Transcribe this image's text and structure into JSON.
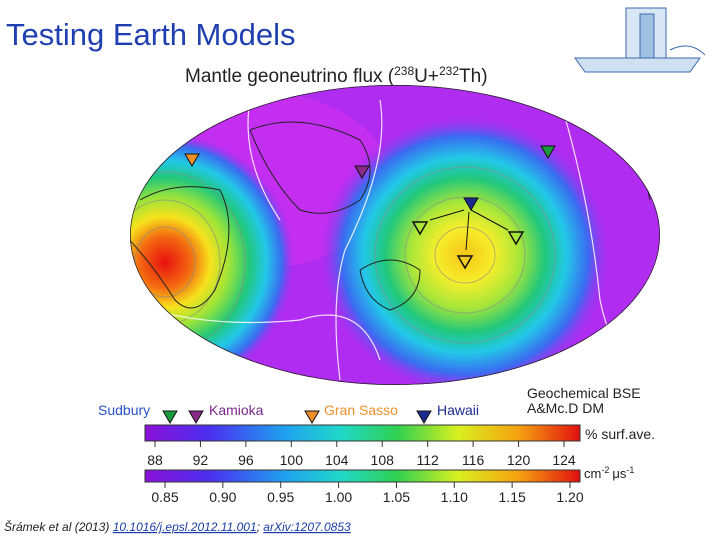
{
  "header": {
    "title": "Testing Earth Models"
  },
  "map": {
    "title_parts": [
      "Mantle geoneutrino flux (",
      "238",
      "U+",
      "232",
      "Th)"
    ]
  },
  "sites": [
    "Sudbury",
    "Kamioka",
    "Gran Sasso",
    "Hawaii"
  ],
  "model": [
    "Geochemical BSE",
    "A&Mc.D DM"
  ],
  "scale1": {
    "unit": "% surf.ave.",
    "ticks": [
      "88",
      "92",
      "96",
      "100",
      "104",
      "108",
      "112",
      "116",
      "120",
      "124"
    ]
  },
  "scale2": {
    "unit_parts": [
      "cm",
      "-2",
      "μs",
      "-1"
    ],
    "ticks": [
      "0.85",
      "0.90",
      "0.95",
      "1.00",
      "1.05",
      "1.10",
      "1.15",
      "1.20"
    ]
  },
  "citation": {
    "text": "Šrámek et al (2013) ",
    "links": [
      "10.1016/j.epsl.2012.11.001",
      "arXiv:1207.0853"
    ],
    "separator": "; "
  }
}
